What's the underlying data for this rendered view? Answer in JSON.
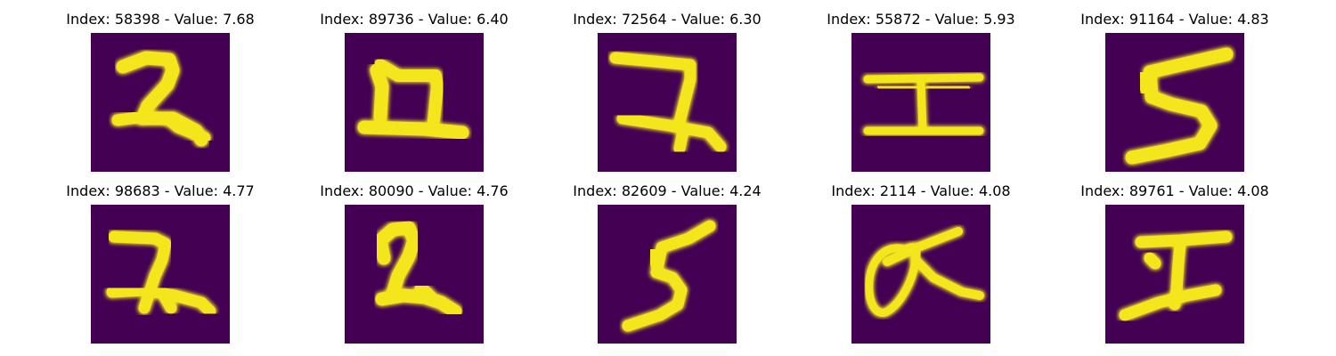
{
  "colors": {
    "background": "#440154",
    "ink": "#f4e61e",
    "halo": "#21918c"
  },
  "panels": [
    {
      "title": "Index: 58398 - Value: 7.68",
      "glyph": "digit-2-icon"
    },
    {
      "title": "Index: 89736 - Value: 6.40",
      "glyph": "digit-2-flat-icon"
    },
    {
      "title": "Index: 72564 - Value: 6.30",
      "glyph": "digit-2-hook-icon"
    },
    {
      "title": "Index: 55872 - Value: 5.93",
      "glyph": "i-beam-icon"
    },
    {
      "title": "Index: 91164 - Value: 4.83",
      "glyph": "digit-5-icon"
    },
    {
      "title": "Index: 98683 - Value: 4.77",
      "glyph": "digit-2-icon"
    },
    {
      "title": "Index: 80090 - Value: 4.76",
      "glyph": "digit-2-loop-icon"
    },
    {
      "title": "Index: 82609 - Value: 4.24",
      "glyph": "digit-5-icon"
    },
    {
      "title": "Index: 2114 - Value: 4.08",
      "glyph": "alpha-loop-icon"
    },
    {
      "title": "Index: 89761 - Value: 4.08",
      "glyph": "digit-2-slanted-icon"
    }
  ]
}
